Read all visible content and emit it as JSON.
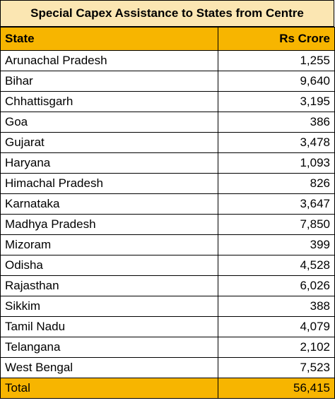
{
  "title": "Special Capex Assistance to States from Centre",
  "columns": {
    "state": "State",
    "value": "Rs Crore"
  },
  "rows": [
    {
      "state": "Arunachal Pradesh",
      "value": "1,255"
    },
    {
      "state": "Bihar",
      "value": "9,640"
    },
    {
      "state": "Chhattisgarh",
      "value": "3,195"
    },
    {
      "state": "Goa",
      "value": "386"
    },
    {
      "state": "Gujarat",
      "value": "3,478"
    },
    {
      "state": "Haryana",
      "value": "1,093"
    },
    {
      "state": "Himachal Pradesh",
      "value": "826"
    },
    {
      "state": "Karnataka",
      "value": "3,647"
    },
    {
      "state": "Madhya Pradesh",
      "value": "7,850"
    },
    {
      "state": "Mizoram",
      "value": "399"
    },
    {
      "state": "Odisha",
      "value": "4,528"
    },
    {
      "state": "Rajasthan",
      "value": "6,026"
    },
    {
      "state": "Sikkim",
      "value": "388"
    },
    {
      "state": "Tamil Nadu",
      "value": "4,079"
    },
    {
      "state": "Telangana",
      "value": "2,102"
    },
    {
      "state": "West Bengal",
      "value": "7,523"
    }
  ],
  "total": {
    "label": "Total",
    "value": "56,415"
  },
  "colors": {
    "title_background": "#fbe6b2",
    "header_background": "#f7b500",
    "total_background": "#f7b500"
  }
}
